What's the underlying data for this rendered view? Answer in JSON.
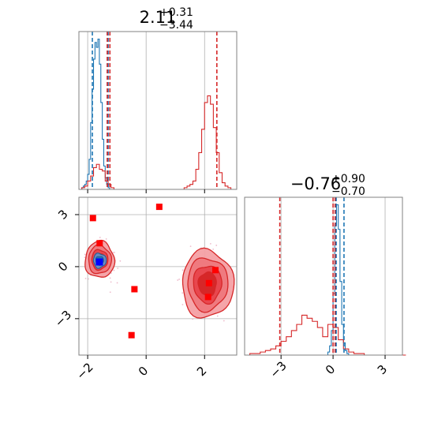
{
  "chart_data": {
    "type": "corner",
    "colors": {
      "blue": "#1f77b4",
      "red": "#d62728",
      "red_light": "#f4a0a4",
      "red_mid": "#e8474e",
      "grid": "#b0b0b0",
      "frame": "#808080"
    },
    "panels": [
      {
        "id": "hist-top",
        "type": "histogram",
        "title_main": "2.11",
        "title_sup": "+0.31",
        "title_sub": "−3.44",
        "xlim": [
          -2.3,
          3.1
        ],
        "xgrid": [
          -2,
          0,
          2
        ],
        "series": [
          {
            "name": "blue",
            "bins_x": [
              -2.3,
              -2.25,
              -2.2,
              -2.15,
              -2.1,
              -2.05,
              -2.0,
              -1.95,
              -1.9,
              -1.85,
              -1.8,
              -1.75,
              -1.7,
              -1.65,
              -1.6,
              -1.55,
              -1.5,
              -1.45,
              -1.4,
              -1.35,
              -1.3,
              -1.25,
              -1.2,
              -1.15,
              -1.1
            ],
            "counts": [
              0,
              0,
              1,
              2,
              3,
              5,
              9,
              18,
              40,
              60,
              78,
              88,
              85,
              90,
              75,
              52,
              30,
              14,
              7,
              3,
              1,
              0,
              0,
              0,
              0
            ]
          },
          {
            "name": "red",
            "bins_x": [
              -2.3,
              -2.2,
              -2.1,
              -2.0,
              -1.9,
              -1.8,
              -1.7,
              -1.6,
              -1.5,
              -1.4,
              -1.3,
              -1.2,
              -1.1,
              -1.0,
              -0.9,
              -0.8,
              -0.7,
              -0.6,
              -0.5,
              -0.4,
              -0.3,
              -0.2,
              -0.1,
              0.0,
              0.1,
              0.2,
              0.3,
              0.4,
              0.5,
              0.6,
              0.7,
              0.8,
              0.9,
              1.0,
              1.1,
              1.2,
              1.3,
              1.4,
              1.5,
              1.6,
              1.7,
              1.8,
              1.9,
              2.0,
              2.1,
              2.2,
              2.3,
              2.4,
              2.5,
              2.6,
              2.7,
              2.8,
              2.9,
              3.0
            ],
            "counts": [
              0,
              1,
              2,
              5,
              8,
              13,
              15,
              12,
              11,
              5,
              3,
              1,
              0,
              0,
              0,
              0,
              0,
              0,
              0,
              0,
              0,
              0,
              0,
              0,
              0,
              0,
              0,
              0,
              0,
              0,
              0,
              0,
              0,
              0,
              0,
              0,
              1,
              2,
              3,
              5,
              12,
              22,
              36,
              52,
              56,
              51,
              37,
              22,
              10,
              4,
              2,
              1,
              0,
              0
            ]
          }
        ],
        "quantile_lines": [
          {
            "series": "blue",
            "x": [
              -1.84,
              -1.3
            ]
          },
          {
            "series": "red",
            "x": [
              -1.33,
              -1.24,
              2.42
            ]
          }
        ]
      },
      {
        "id": "scatter-2d",
        "type": "contour",
        "xlim": [
          -2.3,
          3.1
        ],
        "ylim": [
          -5.1,
          4.0
        ],
        "xticks": [
          -2,
          0,
          2
        ],
        "xtick_labels": [
          "−2",
          "0",
          "2"
        ],
        "yticks": [
          3,
          0,
          -3
        ],
        "ytick_labels": [
          "3",
          "0",
          "−3"
        ],
        "blobs": [
          {
            "series": "red",
            "cx": -1.59,
            "cy": 0.4,
            "rx": 0.5,
            "ry": 1.05,
            "rot": 0
          },
          {
            "series": "red",
            "cx": 2.1,
            "cy": -1.0,
            "rx": 0.88,
            "ry": 1.95,
            "rot": 0
          },
          {
            "series": "blue",
            "cx": -1.59,
            "cy": 0.35,
            "rx": 0.22,
            "ry": 0.42,
            "rot": 0
          }
        ],
        "markers": [
          {
            "series": "red",
            "x": -1.82,
            "y": 2.8
          },
          {
            "series": "red",
            "x": 0.45,
            "y": 3.45
          },
          {
            "series": "red",
            "x": -1.59,
            "y": 1.35
          },
          {
            "series": "red",
            "x": -0.4,
            "y": -1.3
          },
          {
            "series": "red",
            "x": -0.5,
            "y": -3.95
          },
          {
            "series": "red",
            "x": 2.37,
            "y": -0.2
          },
          {
            "series": "red",
            "x": 2.15,
            "y": -0.95
          },
          {
            "series": "red",
            "x": 2.12,
            "y": -1.75
          },
          {
            "series": "blue",
            "x": -1.6,
            "y": 0.27
          }
        ]
      },
      {
        "id": "hist-right",
        "type": "histogram",
        "title_main": "−0.76",
        "title_sup": "+0.90",
        "title_sub": "−0.70",
        "xlim": [
          -5.1,
          4.0
        ],
        "xticks": [
          -3,
          0,
          3
        ],
        "xtick_labels": [
          "−3",
          "0",
          "3"
        ],
        "xgrid": [
          -3,
          0,
          3
        ],
        "series": [
          {
            "name": "blue",
            "bins_x": [
              -0.4,
              -0.3,
              -0.2,
              -0.1,
              0.0,
              0.1,
              0.2,
              0.3,
              0.4,
              0.5,
              0.6,
              0.7,
              0.8,
              0.9
            ],
            "counts": [
              0,
              2,
              6,
              16,
              40,
              85,
              98,
              82,
              48,
              20,
              8,
              3,
              1,
              0
            ]
          },
          {
            "name": "red",
            "bins_x": [
              -5.1,
              -4.8,
              -4.5,
              -4.2,
              -3.9,
              -3.6,
              -3.3,
              -3.0,
              -2.7,
              -2.4,
              -2.1,
              -1.8,
              -1.5,
              -1.2,
              -0.9,
              -0.6,
              -0.3,
              0.0,
              0.3,
              0.6,
              0.9,
              1.2,
              1.5,
              1.8,
              2.1,
              2.4,
              2.7,
              3.0,
              3.3,
              3.6,
              3.9
            ],
            "counts": [
              0,
              1,
              1,
              2,
              3,
              4,
              6,
              9,
              12,
              16,
              20,
              26,
              24,
              22,
              18,
              12,
              20,
              18,
              10,
              4,
              2,
              1,
              1,
              0,
              0,
              0,
              0,
              0,
              0,
              0,
              0
            ]
          }
        ],
        "quantile_lines": [
          {
            "series": "red",
            "x": [
              -3.07,
              0.0,
              0.12
            ]
          },
          {
            "series": "blue",
            "x": [
              0.18,
              0.63
            ]
          }
        ]
      }
    ]
  }
}
